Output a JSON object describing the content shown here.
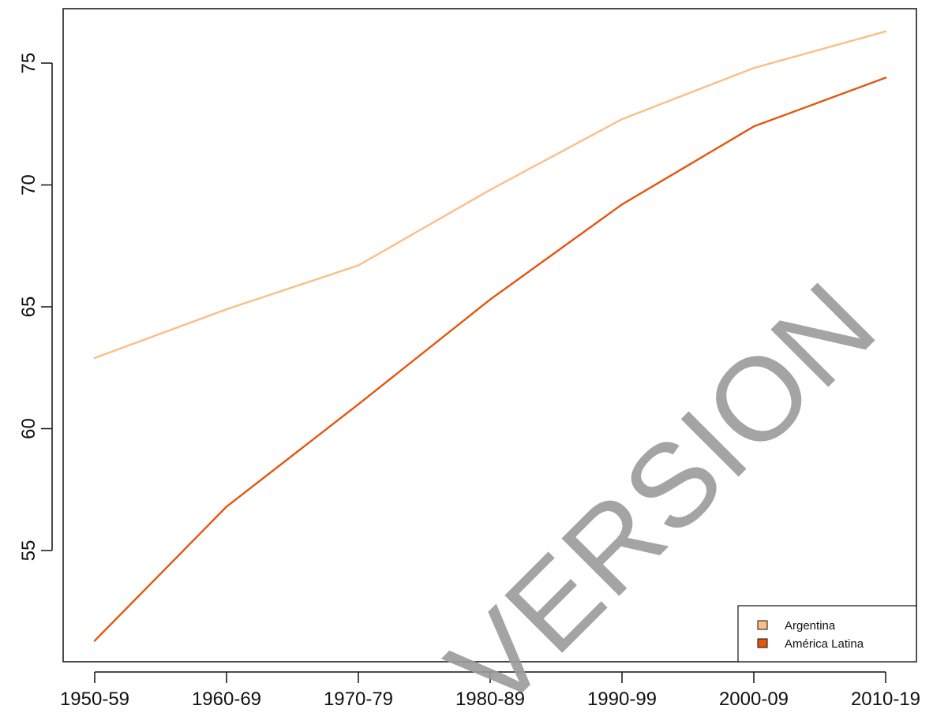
{
  "chart_data": {
    "type": "line",
    "title": "",
    "xlabel": "",
    "ylabel": "",
    "categories": [
      "1950-59",
      "1960-69",
      "1970-79",
      "1980-89",
      "1990-99",
      "2000-09",
      "2010-19"
    ],
    "x_ticks": [
      "1950-59",
      "1960-69",
      "1970-79",
      "1980-89",
      "1990-99",
      "2000-09",
      "2010-19"
    ],
    "y_ticks": [
      "55",
      "60",
      "65",
      "70",
      "75"
    ],
    "ylim": [
      50,
      77
    ],
    "grid": false,
    "legend_position": "bottom-right",
    "series": [
      {
        "name": "Argentina",
        "color": "#fdbe85",
        "values": [
          62.9,
          64.9,
          66.7,
          69.8,
          72.7,
          74.8,
          76.3
        ]
      },
      {
        "name": "América Latina",
        "color": "#e6550d",
        "values": [
          51.3,
          56.8,
          61.0,
          65.3,
          69.2,
          72.4,
          74.4
        ]
      }
    ]
  },
  "watermark": {
    "text": "VERSION"
  }
}
